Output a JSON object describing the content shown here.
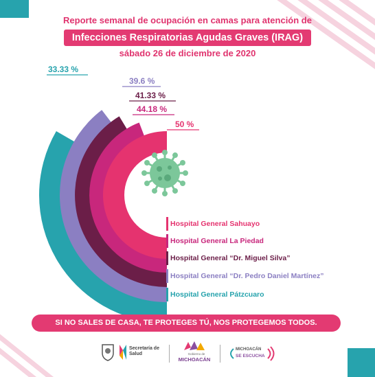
{
  "header": {
    "line1": "Reporte semanal de ocupación en camas para atención de",
    "line2": "Infecciones Respiratorias Agudas Graves (IRAG)",
    "line3": "sábado 26 de diciembre de 2020"
  },
  "chart_data": {
    "type": "radial-bar",
    "title": "Infecciones Respiratorias Agudas Graves (IRAG)",
    "series": [
      {
        "name": "Hospital General Sahuayo",
        "value": 50,
        "label": "50 %",
        "color": "#e5336f"
      },
      {
        "name": "Hospital General La Piedad",
        "value": 44.18,
        "label": "44.18 %",
        "color": "#c8277c"
      },
      {
        "name": "Hospital General “Dr. Miguel Silva”",
        "value": 41.33,
        "label": "41.33 %",
        "color": "#6b1e48"
      },
      {
        "name": "Hospital General “Dr. Pedro Daniel Martínez”",
        "value": 39.6,
        "label": "39.6 %",
        "color": "#8b7fc2"
      },
      {
        "name": "Hospital General Pátzcuaro",
        "value": 33.33,
        "label": "33.33 %",
        "color": "#27a3ad"
      }
    ]
  },
  "banner": {
    "text": "SI NO SALES DE CASA, TE PROTEGES TÚ, NOS PROTEGEMOS TODOS."
  },
  "footer": {
    "logo1": "Secretaría de Salud",
    "logo2": "MICHOACÁN",
    "logo2_small": "Gobierno de",
    "logo3_small": "MICHOACÁN",
    "logo3": "SE ESCUCHA"
  },
  "colors": {
    "accent": "#e33a72",
    "teal": "#27a3ad"
  },
  "icons": [
    "virus-icon",
    "state-seal-icon",
    "secretaria-salud-icon",
    "michoacan-logo-icon",
    "se-escucha-icon"
  ]
}
